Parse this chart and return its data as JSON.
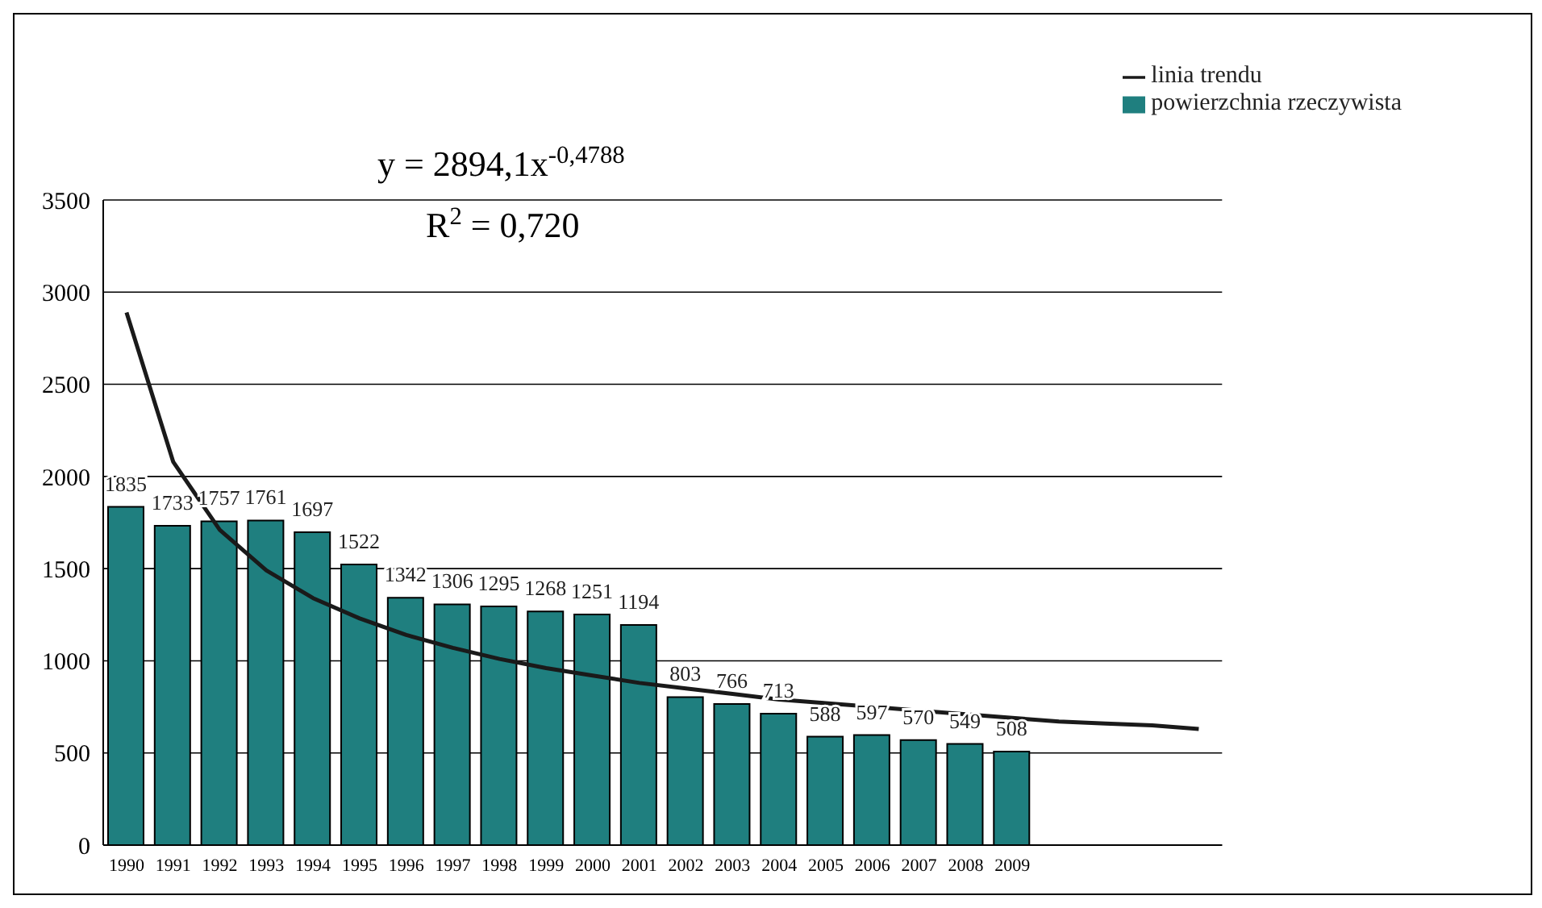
{
  "chart_data": {
    "type": "bar",
    "categories": [
      "1990",
      "1991",
      "1992",
      "1993",
      "1994",
      "1995",
      "1996",
      "1997",
      "1998",
      "1999",
      "2000",
      "2001",
      "2002",
      "2003",
      "2004",
      "2005",
      "2006",
      "2007",
      "2008",
      "2009",
      null,
      null,
      null,
      null
    ],
    "series": [
      {
        "name": "powierzchnia rzeczywista",
        "color": "#1f7f7f",
        "values": [
          1835,
          1733,
          1757,
          1761,
          1697,
          1522,
          1342,
          1306,
          1295,
          1268,
          1251,
          1194,
          803,
          766,
          713,
          588,
          597,
          570,
          549,
          508,
          null,
          null,
          null,
          null
        ],
        "value_labels": [
          "1835",
          "1733",
          "1757",
          "1761",
          "1697",
          "1522",
          "1342",
          "1306",
          "1295",
          "1268",
          "1251",
          "1194",
          "803",
          "766",
          "713",
          "588",
          "597",
          "570",
          "549",
          "508",
          null,
          null,
          null,
          null
        ]
      },
      {
        "name": "linia trendu",
        "type": "line",
        "color": "#1a1a1a",
        "values": [
          2890,
          2080,
          1710,
          1490,
          1340,
          1230,
          1140,
          1070,
          1010,
          960,
          920,
          880,
          850,
          820,
          790,
          770,
          750,
          730,
          710,
          690,
          670,
          660,
          650,
          630
        ]
      }
    ],
    "ylim": [
      0,
      3500
    ],
    "yticks": [
      0,
      500,
      1000,
      1500,
      2000,
      2500,
      3000,
      3500
    ],
    "grid": "y",
    "legend": "top right",
    "marker": "none",
    "line_style": "solid",
    "annotations": [
      "y = 2894,1x$^{-0,4788}$",
      "R$^{2}$ = 0,720"
    ]
  }
}
